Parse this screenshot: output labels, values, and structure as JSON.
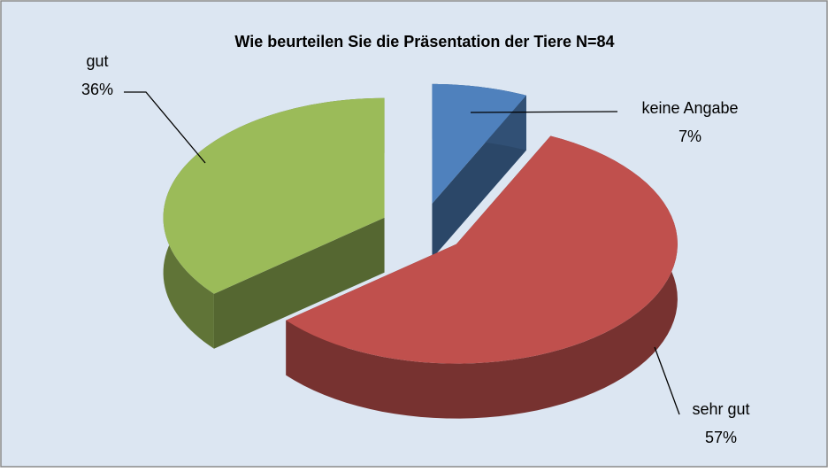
{
  "chart_data": {
    "type": "pie3d",
    "title": "Wie beurteilen Sie die Präsentation der Tiere N=84",
    "categories": [
      "keine Angabe",
      "sehr gut",
      "gut"
    ],
    "values": [
      7,
      57,
      36
    ],
    "value_labels": [
      "7%",
      "57%",
      "36%"
    ],
    "colors": [
      "#4f81bd",
      "#c0504d",
      "#9bbb59"
    ]
  }
}
